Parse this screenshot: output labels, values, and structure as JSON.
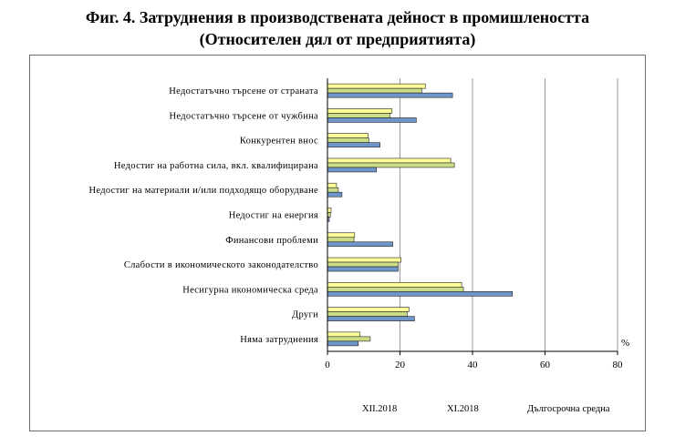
{
  "title": "Фиг. 4. Затруднения в производствената дейност в промишлеността",
  "subtitle": "(Относителен дял от предприятията)",
  "chart_data": {
    "type": "bar",
    "orientation": "horizontal",
    "unit_label": "%",
    "xlim": [
      0,
      80
    ],
    "xticks": [
      0,
      20,
      40,
      60,
      80
    ],
    "categories": [
      "Недостатъчно търсене от страната",
      "Недостатъчно търсене от чужбина",
      "Конкурентен внос",
      "Недостиг на работна сила, вкл. квалифицирана",
      "Недостиг на материали и/или подходящо оборудване",
      "Недостиг на енергия",
      "Финансови проблеми",
      "Слабости в икономическото законодателство",
      "Несигурна икономическа среда",
      "Други",
      "Няма затруднения"
    ],
    "series": [
      {
        "name": "XII.2018",
        "color": "#ffff99",
        "values": [
          27.0,
          17.8,
          11.2,
          34.0,
          2.5,
          1.0,
          7.5,
          20.3,
          37.0,
          22.5,
          9.0
        ]
      },
      {
        "name": "XI.2018",
        "color": "#ccdd88",
        "values": [
          26.0,
          17.3,
          11.4,
          35.0,
          3.0,
          0.8,
          7.3,
          19.5,
          37.5,
          22.0,
          11.8
        ]
      },
      {
        "name": "Дългосрочна средна",
        "color": "#6f96c8",
        "values": [
          34.5,
          24.5,
          14.5,
          13.5,
          4.0,
          0.5,
          18.0,
          19.5,
          51.0,
          24.0,
          8.5
        ]
      }
    ]
  }
}
